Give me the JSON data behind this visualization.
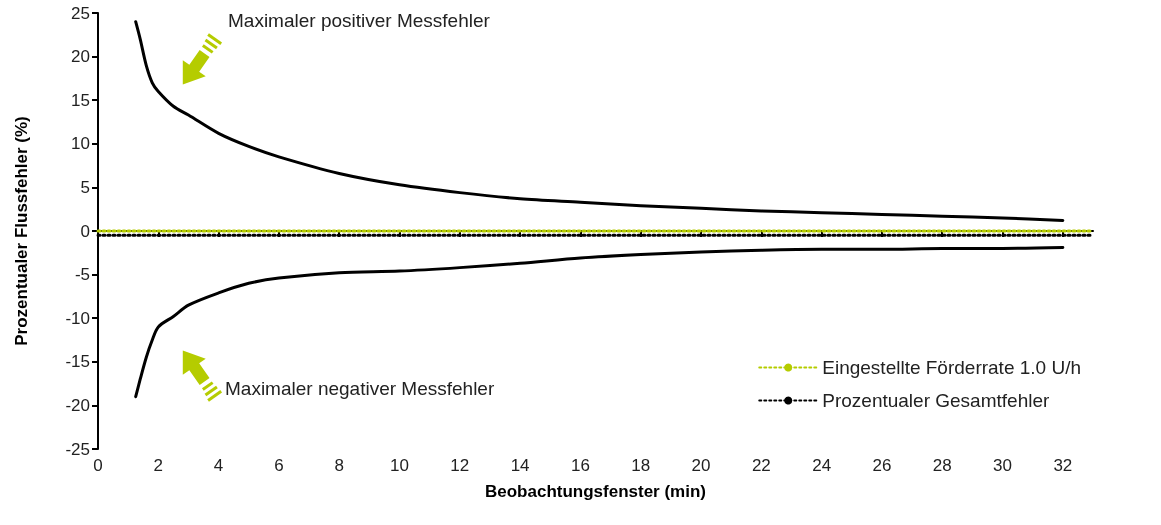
{
  "chart_data": {
    "type": "line",
    "xlabel": "Beobachtungsfenster (min)",
    "ylabel": "Prozentualer Flussfehler (%)",
    "xlim": [
      0,
      33
    ],
    "xticks": [
      0,
      2,
      4,
      6,
      8,
      10,
      12,
      14,
      16,
      18,
      20,
      22,
      24,
      26,
      28,
      30,
      32
    ],
    "ylim": [
      -25,
      25
    ],
    "yticks": [
      -25,
      -20,
      -15,
      -10,
      -5,
      0,
      5,
      10,
      15,
      20,
      25
    ],
    "grid": false,
    "legend": "bottom right",
    "marker": "none",
    "series": [
      {
        "color": "#000000",
        "line_style": "solid",
        "x": [
          1.25,
          1.4,
          1.6,
          1.8,
          2,
          2.5,
          3,
          4,
          5,
          6,
          8,
          10,
          12,
          14,
          16,
          18,
          20,
          22,
          24,
          26,
          28,
          30,
          32
        ],
        "values": [
          24,
          22,
          19,
          17,
          16,
          14.3,
          13.3,
          11.2,
          9.7,
          8.5,
          6.6,
          5.3,
          4.4,
          3.7,
          3.3,
          2.9,
          2.6,
          2.3,
          2.1,
          1.9,
          1.7,
          1.5,
          1.2
        ]
      },
      {
        "color": "#000000",
        "line_style": "solid",
        "x": [
          1.25,
          1.4,
          1.6,
          1.8,
          2,
          2.5,
          3,
          4,
          5,
          6,
          8,
          10,
          12,
          14,
          16,
          18,
          20,
          22,
          24,
          26,
          28,
          30,
          32
        ],
        "values": [
          -19,
          -17,
          -14.5,
          -12.5,
          -11,
          -9.8,
          -8.5,
          -7.1,
          -6,
          -5.4,
          -4.8,
          -4.6,
          -4.2,
          -3.7,
          -3.1,
          -2.7,
          -2.4,
          -2.2,
          -2.1,
          -2.1,
          -2,
          -2,
          -1.9
        ]
      },
      {
        "name": "Eingestellte Förderrate 1.0 U/h",
        "color": "#b5cc00",
        "line_style": "dotted",
        "x": [
          0,
          33
        ],
        "values": [
          0,
          0
        ]
      },
      {
        "name": "Prozentualer Gesamtfehler",
        "color": "#000000",
        "line_style": "dotted",
        "x": [
          0,
          33
        ],
        "values": [
          -0.5,
          -0.5
        ]
      }
    ],
    "annotations": [
      "Maximaler positiver Messfehler",
      "Maximaler negativer Messfehler"
    ]
  }
}
